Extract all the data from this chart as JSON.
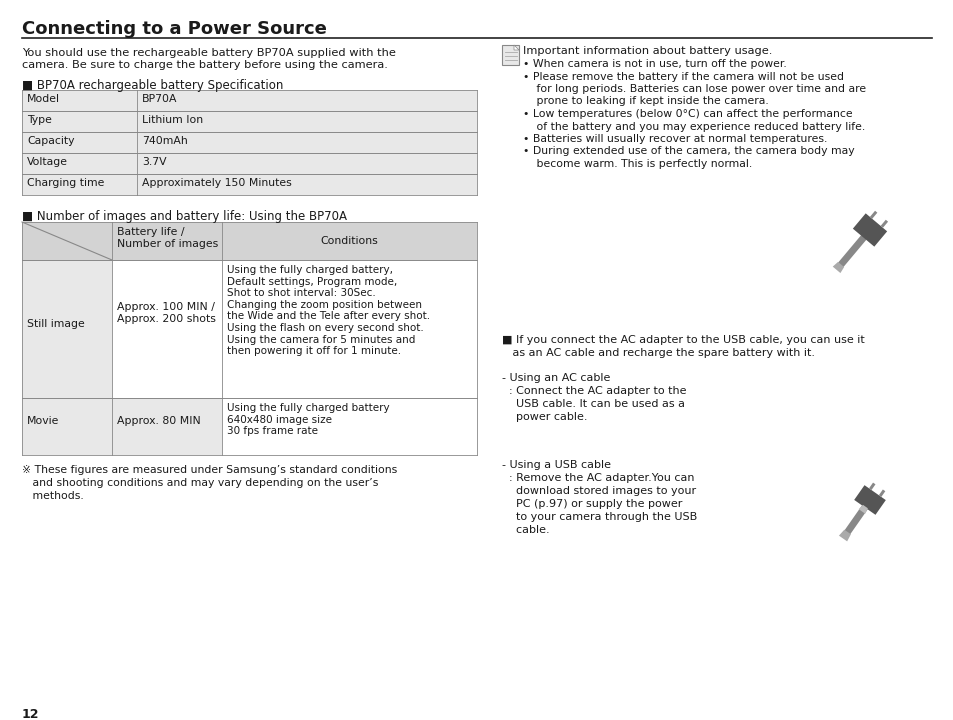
{
  "title": "Connecting to a Power Source",
  "bg_color": "#ffffff",
  "text_color": "#1a1a1a",
  "page_number": "12",
  "intro_text": "You should use the rechargeable battery BP70A supplied with the\ncamera. Be sure to charge the battery before using the camera.",
  "spec_header": "■ BP70A rechargeable battery Specification",
  "spec_rows": [
    [
      "Model",
      "BP70A"
    ],
    [
      "Type",
      "Lithium Ion"
    ],
    [
      "Capacity",
      "740mAh"
    ],
    [
      "Voltage",
      "3.7V"
    ],
    [
      "Charging time",
      "Approximately 150 Minutes"
    ]
  ],
  "battery_header": "■ Number of images and battery life: Using the BP70A",
  "battery_col2_header": "Battery life /\nNumber of images",
  "battery_col3_header": "Conditions",
  "battery_row1_col1": "Still image",
  "battery_row1_col2": "Approx. 100 MIN /\nApprox. 200 shots",
  "battery_row1_col3": "Using the fully charged battery,\nDefault settings, Program mode,\nShot to shot interval: 30Sec.\nChanging the zoom position between\nthe Wide and the Tele after every shot.\nUsing the flash on every second shot.\nUsing the camera for 5 minutes and\nthen powering it off for 1 minute.",
  "battery_row2_col1": "Movie",
  "battery_row2_col2": "Approx. 80 MIN",
  "battery_row2_col3": "Using the fully charged battery\n640x480 image size\n30 fps frame rate",
  "footnote_line1": "※ These figures are measured under Samsung’s standard conditions",
  "footnote_line2": "   and shooting conditions and may vary depending on the user’s",
  "footnote_line3": "   methods.",
  "right_note_text": "Important information about battery usage.",
  "right_bullets": [
    "When camera is not in use, turn off the power.",
    "Please remove the battery if the camera will not be used\n   for long periods. Batteries can lose power over time and are\n   prone to leaking if kept inside the camera.",
    "Low temperatures (below 0°C) can affect the performance\n   of the battery and you may experience reduced battery life.",
    "Batteries will usually recover at normal temperatures.",
    "During extended use of the camera, the camera body may\n   become warm. This is perfectly normal."
  ],
  "right_ac_header_line1": "■ If you connect the AC adapter to the USB cable, you can use it",
  "right_ac_header_line2": "   as an AC cable and recharge the spare battery with it.",
  "ac_cable_line1": "- Using an AC cable",
  "ac_cable_line2": "  : Connect the AC adapter to the",
  "ac_cable_line3": "    USB cable. It can be used as a",
  "ac_cable_line4": "    power cable.",
  "usb_cable_line1": "- Using a USB cable",
  "usb_cable_line2": "  : Remove the AC adapter.You can",
  "usb_cable_line3": "    download stored images to your",
  "usb_cable_line4": "    PC (p.97) or supply the power",
  "usb_cable_line5": "    to your camera through the USB",
  "usb_cable_line6": "    cable.",
  "table_header_bg": "#d3d3d3",
  "table_row_bg_odd": "#e8e8e8",
  "table_row_bg_even": "#f5f5f5",
  "table_border": "#888888",
  "plug_color": "#555555",
  "cable_color": "#777777"
}
